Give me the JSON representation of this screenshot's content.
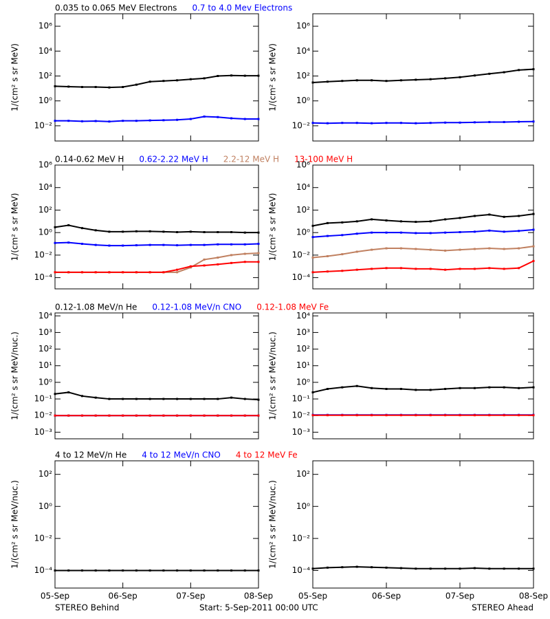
{
  "footer": {
    "left": "STEREO Behind",
    "center": "Start:  5-Sep-2011 00:00 UTC",
    "right": "STEREO Ahead"
  },
  "chart_data": [
    {
      "type": "line",
      "log_y": true,
      "ylabel": "1/(cm² s sr MeV)",
      "xlim": [
        0,
        3
      ],
      "xticks": [
        0,
        1,
        2,
        3
      ],
      "ylim": [
        0.0006,
        10000000
      ],
      "yticks": [
        {
          "value": 0.01,
          "label": "10⁻²"
        },
        {
          "value": 1,
          "label": "10⁰"
        },
        {
          "value": 100,
          "label": "10²"
        },
        {
          "value": 10000,
          "label": "10⁴"
        },
        {
          "value": 1000000,
          "label": "10⁶"
        }
      ],
      "x": [
        0,
        0.2,
        0.4,
        0.6,
        0.8,
        1,
        1.2,
        1.4,
        1.6,
        1.8,
        2,
        2.2,
        2.4,
        2.6,
        2.8,
        3
      ],
      "series": [
        {
          "name": "0.035 to 0.065 MeV Electrons",
          "color": "#000000",
          "values": [
            15,
            14,
            13,
            13,
            12,
            13,
            20,
            35,
            40,
            45,
            55,
            65,
            100,
            110,
            105,
            105
          ]
        },
        {
          "name": "0.7 to 4.0 Mev Electrons",
          "color": "#0000ff",
          "values": [
            0.025,
            0.025,
            0.023,
            0.024,
            0.022,
            0.025,
            0.025,
            0.027,
            0.028,
            0.03,
            0.035,
            0.055,
            0.05,
            0.04,
            0.035,
            0.035
          ]
        }
      ]
    },
    {
      "type": "line",
      "log_y": true,
      "ylabel": "1/(cm² s sr MeV)",
      "xlim": [
        0,
        3
      ],
      "xticks": [
        0,
        1,
        2,
        3
      ],
      "ylim": [
        0.0006,
        10000000
      ],
      "yticks": [
        {
          "value": 0.01,
          "label": "10⁻²"
        },
        {
          "value": 1,
          "label": "10⁰"
        },
        {
          "value": 100,
          "label": "10²"
        },
        {
          "value": 10000,
          "label": "10⁴"
        },
        {
          "value": 1000000,
          "label": "10⁶"
        }
      ],
      "x": [
        0,
        0.2,
        0.4,
        0.6,
        0.8,
        1,
        1.2,
        1.4,
        1.6,
        1.8,
        2,
        2.2,
        2.4,
        2.6,
        2.8,
        3
      ],
      "series": [
        {
          "color": "#000000",
          "values": [
            30,
            35,
            40,
            45,
            45,
            40,
            45,
            50,
            55,
            65,
            80,
            110,
            150,
            200,
            300,
            350
          ]
        },
        {
          "color": "#0000ff",
          "values": [
            0.017,
            0.016,
            0.017,
            0.017,
            0.016,
            0.017,
            0.017,
            0.016,
            0.017,
            0.018,
            0.018,
            0.019,
            0.02,
            0.02,
            0.021,
            0.022
          ]
        }
      ]
    },
    {
      "type": "line",
      "log_y": true,
      "ylabel": "1/(cm² s sr MeV)",
      "xlim": [
        0,
        3
      ],
      "xticks": [
        0,
        1,
        2,
        3
      ],
      "ylim": [
        1e-05,
        1000000
      ],
      "yticks": [
        {
          "value": 0.0001,
          "label": "10⁻⁴"
        },
        {
          "value": 0.01,
          "label": "10⁻²"
        },
        {
          "value": 1,
          "label": "10⁰"
        },
        {
          "value": 100,
          "label": "10²"
        },
        {
          "value": 10000,
          "label": "10⁴"
        },
        {
          "value": 1000000,
          "label": "10⁶"
        }
      ],
      "x": [
        0,
        0.2,
        0.4,
        0.6,
        0.8,
        1,
        1.2,
        1.4,
        1.6,
        1.8,
        2,
        2.2,
        2.4,
        2.6,
        2.8,
        3
      ],
      "series": [
        {
          "name": "0.14-0.62 MeV H",
          "color": "#000000",
          "values": [
            3,
            4.5,
            2.5,
            1.6,
            1.2,
            1.2,
            1.3,
            1.3,
            1.2,
            1.1,
            1.2,
            1.1,
            1.1,
            1.1,
            1,
            1
          ]
        },
        {
          "name": "0.62-2.22 MeV H",
          "color": "#0000ff",
          "values": [
            0.12,
            0.13,
            0.1,
            0.08,
            0.07,
            0.07,
            0.075,
            0.08,
            0.08,
            0.075,
            0.08,
            0.08,
            0.09,
            0.09,
            0.09,
            0.1
          ]
        },
        {
          "name": "2.2-12 MeV H",
          "color": "#c08060",
          "values": [
            0.0003,
            0.0003,
            0.0003,
            0.0003,
            0.0003,
            0.0003,
            0.0003,
            0.0003,
            0.0003,
            0.0003,
            0.0008,
            0.004,
            0.006,
            0.01,
            0.013,
            0.015
          ]
        },
        {
          "name": "13-100 MeV H",
          "color": "#ff0000",
          "values": [
            0.0003,
            0.0003,
            0.0003,
            0.0003,
            0.0003,
            0.0003,
            0.0003,
            0.0003,
            0.0003,
            0.0005,
            0.001,
            0.0012,
            0.0015,
            0.002,
            0.0025,
            0.0025
          ]
        }
      ]
    },
    {
      "type": "line",
      "log_y": true,
      "ylabel": "1/(cm² s sr MeV)",
      "xlim": [
        0,
        3
      ],
      "xticks": [
        0,
        1,
        2,
        3
      ],
      "ylim": [
        1e-05,
        1000000
      ],
      "yticks": [
        {
          "value": 0.0001,
          "label": "10⁻⁴"
        },
        {
          "value": 0.01,
          "label": "10⁻²"
        },
        {
          "value": 1,
          "label": "10⁰"
        },
        {
          "value": 100,
          "label": "10²"
        },
        {
          "value": 10000,
          "label": "10⁴"
        },
        {
          "value": 1000000,
          "label": "10⁶"
        }
      ],
      "x": [
        0,
        0.2,
        0.4,
        0.6,
        0.8,
        1,
        1.2,
        1.4,
        1.6,
        1.8,
        2,
        2.2,
        2.4,
        2.6,
        2.8,
        3
      ],
      "series": [
        {
          "color": "#000000",
          "values": [
            4,
            7,
            8,
            10,
            15,
            12,
            10,
            9,
            10,
            15,
            20,
            30,
            40,
            25,
            30,
            45
          ]
        },
        {
          "color": "#0000ff",
          "values": [
            0.4,
            0.5,
            0.6,
            0.8,
            1,
            1,
            1,
            0.9,
            0.9,
            1,
            1.1,
            1.2,
            1.5,
            1.2,
            1.4,
            1.8
          ]
        },
        {
          "color": "#c08060",
          "values": [
            0.006,
            0.008,
            0.012,
            0.02,
            0.03,
            0.04,
            0.04,
            0.035,
            0.03,
            0.025,
            0.03,
            0.035,
            0.04,
            0.035,
            0.04,
            0.06
          ]
        },
        {
          "color": "#ff0000",
          "values": [
            0.0003,
            0.00035,
            0.0004,
            0.0005,
            0.0006,
            0.0007,
            0.0007,
            0.0006,
            0.0006,
            0.0005,
            0.0006,
            0.0006,
            0.0007,
            0.0006,
            0.0007,
            0.003
          ]
        }
      ]
    },
    {
      "type": "line",
      "log_y": true,
      "ylabel": "1/(cm² s sr MeV/nuc.)",
      "xlim": [
        0,
        3
      ],
      "xticks": [
        0,
        1,
        2,
        3
      ],
      "ylim": [
        0.0004,
        15000
      ],
      "yticks": [
        {
          "value": 0.001,
          "label": "10⁻³"
        },
        {
          "value": 0.01,
          "label": "10⁻²"
        },
        {
          "value": 0.1,
          "label": "10⁻¹"
        },
        {
          "value": 1,
          "label": "10⁰"
        },
        {
          "value": 10,
          "label": "10¹"
        },
        {
          "value": 100,
          "label": "10²"
        },
        {
          "value": 1000,
          "label": "10³"
        },
        {
          "value": 10000,
          "label": "10⁴"
        }
      ],
      "x": [
        0,
        0.2,
        0.4,
        0.6,
        0.8,
        1,
        1.2,
        1.4,
        1.6,
        1.8,
        2,
        2.2,
        2.4,
        2.6,
        2.8,
        3
      ],
      "series": [
        {
          "name": "0.12-1.08 MeV/n He",
          "color": "#000000",
          "values": [
            0.2,
            0.25,
            0.15,
            0.12,
            0.1,
            0.1,
            0.1,
            0.1,
            0.1,
            0.1,
            0.1,
            0.1,
            0.1,
            0.12,
            0.1,
            0.09
          ]
        },
        {
          "name": "0.12-1.08 MeV/n CNO",
          "color": "#0000ff",
          "values": [
            0.01,
            0.01,
            0.01,
            0.01,
            0.01,
            0.01,
            0.01,
            0.01,
            0.01,
            0.01,
            0.01,
            0.01,
            0.01,
            0.01,
            0.01,
            0.01
          ]
        },
        {
          "name": "0.12-1.08 MeV Fe",
          "color": "#ff0000",
          "values": [
            0.01,
            0.01,
            0.01,
            0.01,
            0.01,
            0.01,
            0.01,
            0.01,
            0.01,
            0.01,
            0.01,
            0.01,
            0.01,
            0.01,
            0.01,
            0.01
          ]
        }
      ]
    },
    {
      "type": "line",
      "log_y": true,
      "ylabel": "1/(cm² s sr MeV/nuc.)",
      "xlim": [
        0,
        3
      ],
      "xticks": [
        0,
        1,
        2,
        3
      ],
      "ylim": [
        0.0004,
        15000
      ],
      "yticks": [
        {
          "value": 0.001,
          "label": "10⁻³"
        },
        {
          "value": 0.01,
          "label": "10⁻²"
        },
        {
          "value": 0.1,
          "label": "10⁻¹"
        },
        {
          "value": 1,
          "label": "10⁰"
        },
        {
          "value": 10,
          "label": "10¹"
        },
        {
          "value": 100,
          "label": "10²"
        },
        {
          "value": 1000,
          "label": "10³"
        },
        {
          "value": 10000,
          "label": "10⁴"
        }
      ],
      "x": [
        0,
        0.2,
        0.4,
        0.6,
        0.8,
        1,
        1.2,
        1.4,
        1.6,
        1.8,
        2,
        2.2,
        2.4,
        2.6,
        2.8,
        3
      ],
      "series": [
        {
          "color": "#000000",
          "values": [
            0.25,
            0.4,
            0.5,
            0.6,
            0.45,
            0.4,
            0.4,
            0.35,
            0.35,
            0.4,
            0.45,
            0.45,
            0.5,
            0.5,
            0.45,
            0.5
          ]
        },
        {
          "color": "#0000ff",
          "values": [
            0.011,
            0.011,
            0.011,
            0.011,
            0.011,
            0.011,
            0.011,
            0.011,
            0.011,
            0.011,
            0.011,
            0.011,
            0.011,
            0.011,
            0.011,
            0.011
          ]
        },
        {
          "color": "#ff0000",
          "values": [
            0.0105,
            0.0105,
            0.0105,
            0.0105,
            0.0105,
            0.0105,
            0.0105,
            0.0105,
            0.0105,
            0.0105,
            0.0105,
            0.0105,
            0.0105,
            0.0105,
            0.0105,
            0.0105
          ]
        }
      ]
    },
    {
      "type": "line",
      "log_y": true,
      "ylabel": "1/(cm² s sr MeV/nuc.)",
      "xlim": [
        0,
        3
      ],
      "xticks": [
        {
          "value": 0,
          "label": "05-Sep"
        },
        {
          "value": 1,
          "label": "06-Sep"
        },
        {
          "value": 2,
          "label": "07-Sep"
        },
        {
          "value": 3,
          "label": "08-Sep"
        }
      ],
      "ylim": [
        8e-06,
        700
      ],
      "yticks": [
        {
          "value": 0.0001,
          "label": "10⁻⁴"
        },
        {
          "value": 0.01,
          "label": "10⁻²"
        },
        {
          "value": 1,
          "label": "10⁰"
        },
        {
          "value": 100,
          "label": "10²"
        }
      ],
      "x": [
        0,
        0.2,
        0.4,
        0.6,
        0.8,
        1,
        1.2,
        1.4,
        1.6,
        1.8,
        2,
        2.2,
        2.4,
        2.6,
        2.8,
        3
      ],
      "series": [
        {
          "name": "4 to 12 MeV/n He",
          "color": "#000000",
          "values": [
            0.0001,
            0.0001,
            0.0001,
            0.0001,
            0.0001,
            0.0001,
            0.0001,
            0.0001,
            0.0001,
            0.0001,
            0.0001,
            0.0001,
            0.0001,
            0.0001,
            0.0001,
            0.0001
          ]
        },
        {
          "name": "4 to 12 MeV/n CNO",
          "color": "#0000ff",
          "values": [
            null,
            null,
            null,
            null,
            null,
            null,
            null,
            null,
            null,
            null,
            null,
            null,
            null,
            null,
            null,
            null
          ]
        },
        {
          "name": "4 to 12 MeV Fe",
          "color": "#ff0000",
          "values": [
            null,
            null,
            null,
            null,
            null,
            null,
            null,
            null,
            null,
            null,
            null,
            null,
            null,
            null,
            null,
            null
          ]
        }
      ]
    },
    {
      "type": "line",
      "log_y": true,
      "ylabel": "1/(cm² s sr MeV/nuc.)",
      "xlim": [
        0,
        3
      ],
      "xticks": [
        {
          "value": 0,
          "label": "05-Sep"
        },
        {
          "value": 1,
          "label": "06-Sep"
        },
        {
          "value": 2,
          "label": "07-Sep"
        },
        {
          "value": 3,
          "label": "08-Sep"
        }
      ],
      "ylim": [
        8e-06,
        700
      ],
      "yticks": [
        {
          "value": 0.0001,
          "label": "10⁻⁴"
        },
        {
          "value": 0.01,
          "label": "10⁻²"
        },
        {
          "value": 1,
          "label": "10⁰"
        },
        {
          "value": 100,
          "label": "10²"
        }
      ],
      "x": [
        0,
        0.2,
        0.4,
        0.6,
        0.8,
        1,
        1.2,
        1.4,
        1.6,
        1.8,
        2,
        2.2,
        2.4,
        2.6,
        2.8,
        3
      ],
      "series": [
        {
          "color": "#000000",
          "values": [
            0.00013,
            0.00015,
            0.00016,
            0.00017,
            0.00016,
            0.00015,
            0.00014,
            0.00013,
            0.00013,
            0.00013,
            0.00013,
            0.00014,
            0.00013,
            0.00013,
            0.00013,
            0.00013
          ]
        }
      ]
    }
  ]
}
